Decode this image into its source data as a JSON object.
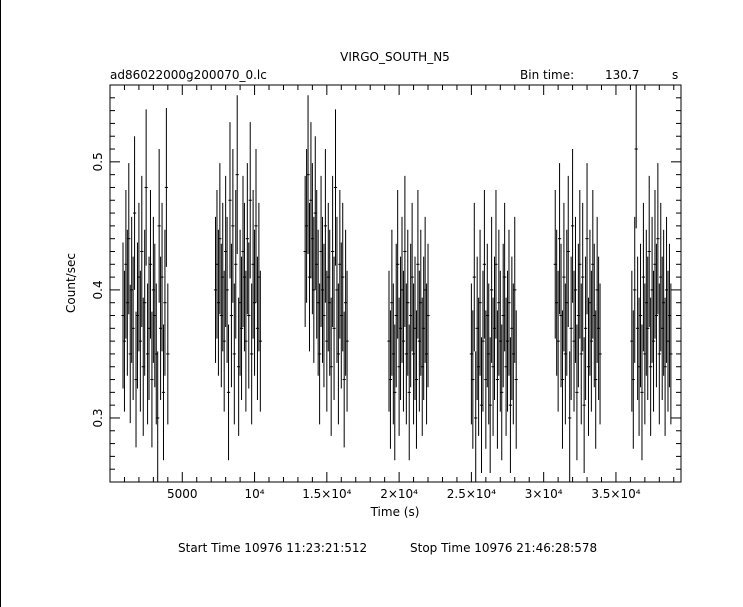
{
  "chart_data": {
    "type": "scatter",
    "title": "VIRGO_SOUTH_N5",
    "file_label": "ad86022000g200070_0.lc",
    "bin_time_label": "Bin time:",
    "bin_time_value": "130.7",
    "bin_time_unit": "s",
    "xlabel": "Time (s)",
    "ylabel": "Count/sec",
    "xlim": [
      0,
      39500
    ],
    "ylim": [
      0.25,
      0.56
    ],
    "x_ticks": [
      {
        "value": 5000,
        "label": "5000"
      },
      {
        "value": 10000,
        "label": "10⁴"
      },
      {
        "value": 15000,
        "label": "1.5×10⁴"
      },
      {
        "value": 20000,
        "label": "2×10⁴"
      },
      {
        "value": 25000,
        "label": "2.5×10⁴"
      },
      {
        "value": 30000,
        "label": "3×10⁴"
      },
      {
        "value": 35000,
        "label": "3.5×10⁴"
      }
    ],
    "y_ticks": [
      {
        "value": 0.3,
        "label": "0.3"
      },
      {
        "value": 0.4,
        "label": "0.4"
      },
      {
        "value": 0.5,
        "label": "0.5"
      }
    ],
    "series": [
      {
        "points": [
          [
            900,
            0.38,
            0.057
          ],
          [
            1000,
            0.36,
            0.055
          ],
          [
            1100,
            0.42,
            0.058
          ],
          [
            1200,
            0.39,
            0.057
          ],
          [
            1300,
            0.44,
            0.059
          ],
          [
            1400,
            0.35,
            0.054
          ],
          [
            1500,
            0.4,
            0.057
          ],
          [
            1600,
            0.37,
            0.056
          ],
          [
            1700,
            0.46,
            0.06
          ],
          [
            1800,
            0.33,
            0.053
          ],
          [
            1900,
            0.38,
            0.057
          ],
          [
            2000,
            0.41,
            0.058
          ],
          [
            2100,
            0.36,
            0.055
          ],
          [
            2200,
            0.43,
            0.059
          ],
          [
            2300,
            0.34,
            0.054
          ],
          [
            2400,
            0.39,
            0.057
          ],
          [
            2500,
            0.48,
            0.061
          ],
          [
            2600,
            0.35,
            0.055
          ],
          [
            2700,
            0.37,
            0.056
          ],
          [
            2800,
            0.42,
            0.058
          ],
          [
            2900,
            0.33,
            0.053
          ],
          [
            3000,
            0.4,
            0.057
          ],
          [
            3100,
            0.38,
            0.056
          ],
          [
            3200,
            0.35,
            0.055
          ],
          [
            3300,
            0.3,
            0.052
          ],
          [
            3400,
            0.45,
            0.06
          ],
          [
            3500,
            0.37,
            0.056
          ],
          [
            3600,
            0.41,
            0.058
          ],
          [
            3700,
            0.32,
            0.053
          ],
          [
            3800,
            0.39,
            0.057
          ],
          [
            3900,
            0.48,
            0.062
          ],
          [
            4000,
            0.35,
            0.055
          ]
        ]
      },
      {
        "points": [
          [
            7300,
            0.4,
            0.057
          ],
          [
            7400,
            0.42,
            0.058
          ],
          [
            7500,
            0.39,
            0.057
          ],
          [
            7600,
            0.44,
            0.059
          ],
          [
            7700,
            0.38,
            0.056
          ],
          [
            7800,
            0.41,
            0.058
          ],
          [
            7900,
            0.36,
            0.055
          ],
          [
            8000,
            0.43,
            0.059
          ],
          [
            8100,
            0.4,
            0.057
          ],
          [
            8200,
            0.32,
            0.053
          ],
          [
            8300,
            0.47,
            0.061
          ],
          [
            8400,
            0.38,
            0.056
          ],
          [
            8500,
            0.45,
            0.06
          ],
          [
            8600,
            0.35,
            0.055
          ],
          [
            8700,
            0.42,
            0.058
          ],
          [
            8800,
            0.49,
            0.062
          ],
          [
            8900,
            0.34,
            0.054
          ],
          [
            9000,
            0.39,
            0.057
          ],
          [
            9100,
            0.37,
            0.056
          ],
          [
            9200,
            0.43,
            0.059
          ],
          [
            9300,
            0.41,
            0.058
          ],
          [
            9400,
            0.36,
            0.055
          ],
          [
            9500,
            0.44,
            0.059
          ],
          [
            9600,
            0.38,
            0.057
          ],
          [
            9700,
            0.47,
            0.061
          ],
          [
            9800,
            0.35,
            0.055
          ],
          [
            9900,
            0.42,
            0.058
          ],
          [
            10000,
            0.39,
            0.057
          ],
          [
            10100,
            0.45,
            0.06
          ],
          [
            10200,
            0.37,
            0.056
          ],
          [
            10300,
            0.41,
            0.058
          ],
          [
            10400,
            0.36,
            0.055
          ]
        ]
      },
      {
        "points": [
          [
            13500,
            0.43,
            0.059
          ],
          [
            13600,
            0.45,
            0.06
          ],
          [
            13700,
            0.49,
            0.062
          ],
          [
            13800,
            0.41,
            0.058
          ],
          [
            13900,
            0.47,
            0.061
          ],
          [
            14000,
            0.44,
            0.059
          ],
          [
            14100,
            0.4,
            0.057
          ],
          [
            14200,
            0.46,
            0.06
          ],
          [
            14300,
            0.42,
            0.058
          ],
          [
            14400,
            0.39,
            0.057
          ],
          [
            14500,
            0.35,
            0.055
          ],
          [
            14600,
            0.43,
            0.059
          ],
          [
            14700,
            0.4,
            0.057
          ],
          [
            14800,
            0.38,
            0.056
          ],
          [
            14900,
            0.45,
            0.06
          ],
          [
            15000,
            0.36,
            0.055
          ],
          [
            15100,
            0.41,
            0.058
          ],
          [
            15200,
            0.39,
            0.057
          ],
          [
            15300,
            0.34,
            0.054
          ],
          [
            15400,
            0.43,
            0.059
          ],
          [
            15500,
            0.37,
            0.056
          ],
          [
            15600,
            0.48,
            0.061
          ],
          [
            15700,
            0.4,
            0.057
          ],
          [
            15800,
            0.35,
            0.055
          ],
          [
            15900,
            0.42,
            0.058
          ],
          [
            16000,
            0.38,
            0.057
          ],
          [
            16100,
            0.41,
            0.058
          ],
          [
            16200,
            0.33,
            0.053
          ],
          [
            16300,
            0.39,
            0.057
          ],
          [
            16400,
            0.36,
            0.055
          ]
        ]
      },
      {
        "points": [
          [
            19300,
            0.36,
            0.055
          ],
          [
            19400,
            0.33,
            0.054
          ],
          [
            19500,
            0.39,
            0.057
          ],
          [
            19600,
            0.35,
            0.055
          ],
          [
            19700,
            0.32,
            0.053
          ],
          [
            19800,
            0.38,
            0.056
          ],
          [
            19900,
            0.42,
            0.058
          ],
          [
            20000,
            0.34,
            0.054
          ],
          [
            20100,
            0.37,
            0.056
          ],
          [
            20200,
            0.4,
            0.057
          ],
          [
            20300,
            0.36,
            0.055
          ],
          [
            20400,
            0.43,
            0.059
          ],
          [
            20500,
            0.35,
            0.055
          ],
          [
            20600,
            0.39,
            0.057
          ],
          [
            20700,
            0.32,
            0.053
          ],
          [
            20800,
            0.38,
            0.056
          ],
          [
            20900,
            0.41,
            0.058
          ],
          [
            21000,
            0.35,
            0.055
          ],
          [
            21100,
            0.37,
            0.056
          ],
          [
            21200,
            0.33,
            0.054
          ],
          [
            21300,
            0.42,
            0.058
          ],
          [
            21400,
            0.36,
            0.055
          ],
          [
            21500,
            0.39,
            0.057
          ],
          [
            21600,
            0.34,
            0.054
          ],
          [
            21700,
            0.37,
            0.056
          ],
          [
            21800,
            0.4,
            0.057
          ],
          [
            21900,
            0.35,
            0.055
          ],
          [
            22000,
            0.38,
            0.056
          ]
        ]
      },
      {
        "points": [
          [
            25000,
            0.35,
            0.055
          ],
          [
            25100,
            0.33,
            0.054
          ],
          [
            25200,
            0.41,
            0.058
          ],
          [
            25300,
            0.3,
            0.052
          ],
          [
            25400,
            0.37,
            0.056
          ],
          [
            25500,
            0.34,
            0.054
          ],
          [
            25600,
            0.39,
            0.057
          ],
          [
            25700,
            0.31,
            0.053
          ],
          [
            25800,
            0.36,
            0.055
          ],
          [
            25900,
            0.42,
            0.058
          ],
          [
            26000,
            0.33,
            0.054
          ],
          [
            26100,
            0.38,
            0.056
          ],
          [
            26200,
            0.35,
            0.055
          ],
          [
            26300,
            0.31,
            0.053
          ],
          [
            26400,
            0.4,
            0.057
          ],
          [
            26500,
            0.34,
            0.054
          ],
          [
            26600,
            0.37,
            0.056
          ],
          [
            26700,
            0.42,
            0.058
          ],
          [
            26800,
            0.33,
            0.054
          ],
          [
            26900,
            0.39,
            0.057
          ],
          [
            27000,
            0.36,
            0.055
          ],
          [
            27100,
            0.32,
            0.053
          ],
          [
            27200,
            0.38,
            0.056
          ],
          [
            27300,
            0.41,
            0.058
          ],
          [
            27400,
            0.34,
            0.054
          ],
          [
            27500,
            0.36,
            0.055
          ],
          [
            27600,
            0.39,
            0.057
          ],
          [
            27700,
            0.31,
            0.053
          ],
          [
            27800,
            0.37,
            0.056
          ],
          [
            27900,
            0.35,
            0.055
          ],
          [
            28000,
            0.4,
            0.057
          ],
          [
            28100,
            0.33,
            0.054
          ]
        ]
      },
      {
        "points": [
          [
            30800,
            0.42,
            0.058
          ],
          [
            30900,
            0.39,
            0.057
          ],
          [
            31000,
            0.36,
            0.055
          ],
          [
            31100,
            0.44,
            0.059
          ],
          [
            31200,
            0.38,
            0.056
          ],
          [
            31300,
            0.33,
            0.054
          ],
          [
            31400,
            0.41,
            0.058
          ],
          [
            31500,
            0.35,
            0.055
          ],
          [
            31600,
            0.39,
            0.057
          ],
          [
            31700,
            0.43,
            0.059
          ],
          [
            31800,
            0.3,
            0.052
          ],
          [
            31900,
            0.37,
            0.056
          ],
          [
            32000,
            0.45,
            0.06
          ],
          [
            32100,
            0.36,
            0.055
          ],
          [
            32200,
            0.4,
            0.057
          ],
          [
            32300,
            0.32,
            0.053
          ],
          [
            32400,
            0.38,
            0.056
          ],
          [
            32500,
            0.42,
            0.058
          ],
          [
            32600,
            0.35,
            0.055
          ],
          [
            32700,
            0.41,
            0.058
          ],
          [
            32800,
            0.31,
            0.053
          ],
          [
            32900,
            0.37,
            0.056
          ],
          [
            33000,
            0.44,
            0.059
          ],
          [
            33100,
            0.34,
            0.054
          ],
          [
            33200,
            0.39,
            0.057
          ],
          [
            33300,
            0.36,
            0.055
          ],
          [
            33400,
            0.42,
            0.058
          ],
          [
            33500,
            0.38,
            0.056
          ],
          [
            33600,
            0.33,
            0.054
          ],
          [
            33700,
            0.4,
            0.057
          ],
          [
            33800,
            0.37,
            0.056
          ],
          [
            33900,
            0.35,
            0.055
          ]
        ]
      },
      {
        "points": [
          [
            36100,
            0.36,
            0.055
          ],
          [
            36200,
            0.33,
            0.054
          ],
          [
            36300,
            0.4,
            0.057
          ],
          [
            36400,
            0.51,
            0.062
          ],
          [
            36500,
            0.37,
            0.056
          ],
          [
            36600,
            0.34,
            0.054
          ],
          [
            36700,
            0.38,
            0.056
          ],
          [
            36800,
            0.32,
            0.053
          ],
          [
            36900,
            0.41,
            0.058
          ],
          [
            37000,
            0.35,
            0.055
          ],
          [
            37100,
            0.39,
            0.057
          ],
          [
            37200,
            0.37,
            0.056
          ],
          [
            37300,
            0.43,
            0.059
          ],
          [
            37400,
            0.34,
            0.054
          ],
          [
            37500,
            0.4,
            0.057
          ],
          [
            37600,
            0.36,
            0.055
          ],
          [
            37700,
            0.42,
            0.058
          ],
          [
            37800,
            0.38,
            0.056
          ],
          [
            37900,
            0.44,
            0.059
          ],
          [
            38000,
            0.35,
            0.055
          ],
          [
            38100,
            0.41,
            0.058
          ],
          [
            38200,
            0.37,
            0.056
          ],
          [
            38300,
            0.39,
            0.057
          ],
          [
            38400,
            0.34,
            0.054
          ],
          [
            38500,
            0.4,
            0.057
          ],
          [
            38600,
            0.36,
            0.055
          ],
          [
            38700,
            0.38,
            0.056
          ],
          [
            38800,
            0.35,
            0.055
          ]
        ]
      }
    ]
  },
  "footer": {
    "start_time": "Start Time 10976 11:23:21:512",
    "stop_time": "Stop Time 10976 21:46:28:578"
  }
}
